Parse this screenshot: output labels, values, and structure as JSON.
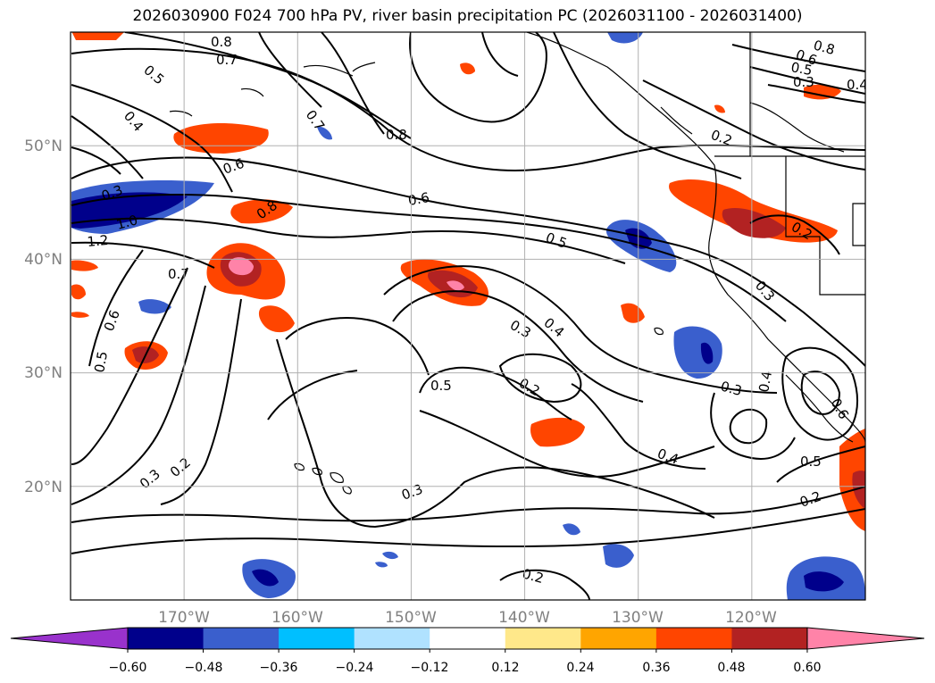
{
  "title": "2026030900 F024 700 hPa PV, river basin precipitation PC (2026031100 - 2026031400)",
  "chart_data": {
    "type": "contour map",
    "title": "2026030900 F024 700 hPa PV, river basin precipitation PC (2026031100 - 2026031400)",
    "lon_range": [
      -180,
      -110
    ],
    "lat_range": [
      10,
      60
    ],
    "lat_ticks": [
      "20°N",
      "30°N",
      "40°N",
      "50°N"
    ],
    "lon_ticks": [
      "170°W",
      "160°W",
      "150°W",
      "140°W",
      "130°W",
      "120°W"
    ],
    "grid": true,
    "colorbar": {
      "orientation": "horizontal",
      "extend": "both",
      "tick_labels": [
        "−0.60",
        "−0.48",
        "−0.36",
        "−0.24",
        "−0.12",
        "0.12",
        "0.24",
        "0.36",
        "0.48",
        "0.60"
      ],
      "colors": [
        "#9932cc",
        "#00008b",
        "#3a5fcd",
        "#00bfff",
        "#b0e2ff",
        "#ffffff",
        "#ffe88a",
        "#ffa500",
        "#ff4500",
        "#b22222",
        "#ff83a8"
      ]
    },
    "contour_labels": [
      "0.8",
      "0.7",
      "0.5",
      "0.4",
      "0.7",
      "0.8",
      "0.6",
      "0.3",
      "1.0",
      "1.2",
      "0.8",
      "0.7",
      "0.6",
      "0.5",
      "0.6",
      "0.5",
      "0.3",
      "0.4",
      "0.5",
      "0.2",
      "0.3",
      "0.2",
      "0.3",
      "0.2",
      "0.4",
      "0.2",
      "0.3",
      "0.4",
      "0.6",
      "0.5",
      "0.2",
      "0.2",
      "0.3",
      "0.8",
      "0.6",
      "0.5",
      "0.3",
      "0.4"
    ]
  }
}
